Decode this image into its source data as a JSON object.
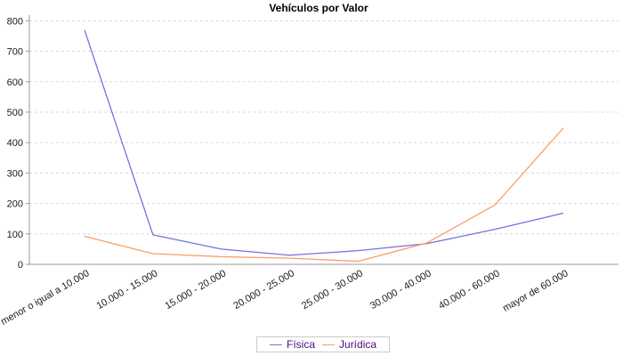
{
  "chart_data": {
    "type": "line",
    "title": "Vehículos por Valor",
    "categories": [
      "menor o igual a 10.000",
      "10.000 - 15.000",
      "15.000 - 20.000",
      "20.000 - 25.000",
      "25.000 - 30.000",
      "30.000 - 40.000",
      "40.000 - 60.000",
      "mayor de 60.000"
    ],
    "series": [
      {
        "name": "Física",
        "color": "#7373e0",
        "values": [
          770,
          97,
          50,
          30,
          45,
          68,
          115,
          168
        ]
      },
      {
        "name": "Jurídica",
        "color": "#fb9e6a",
        "values": [
          92,
          35,
          25,
          20,
          10,
          70,
          195,
          448
        ]
      }
    ],
    "ylim": [
      0,
      800
    ],
    "ytick_step": 100,
    "yticks": [
      0,
      100,
      200,
      300,
      400,
      500,
      600,
      700,
      800
    ],
    "xlabel": "",
    "ylabel": "",
    "grid": "horizontal-dashed",
    "legend_position": "bottom-center",
    "colors": {
      "grid": "#d8d8d8",
      "axis": "#999999",
      "tick_text": "#1a1a1a",
      "legend_text": "#4a0a82",
      "background": "#ffffff"
    }
  }
}
